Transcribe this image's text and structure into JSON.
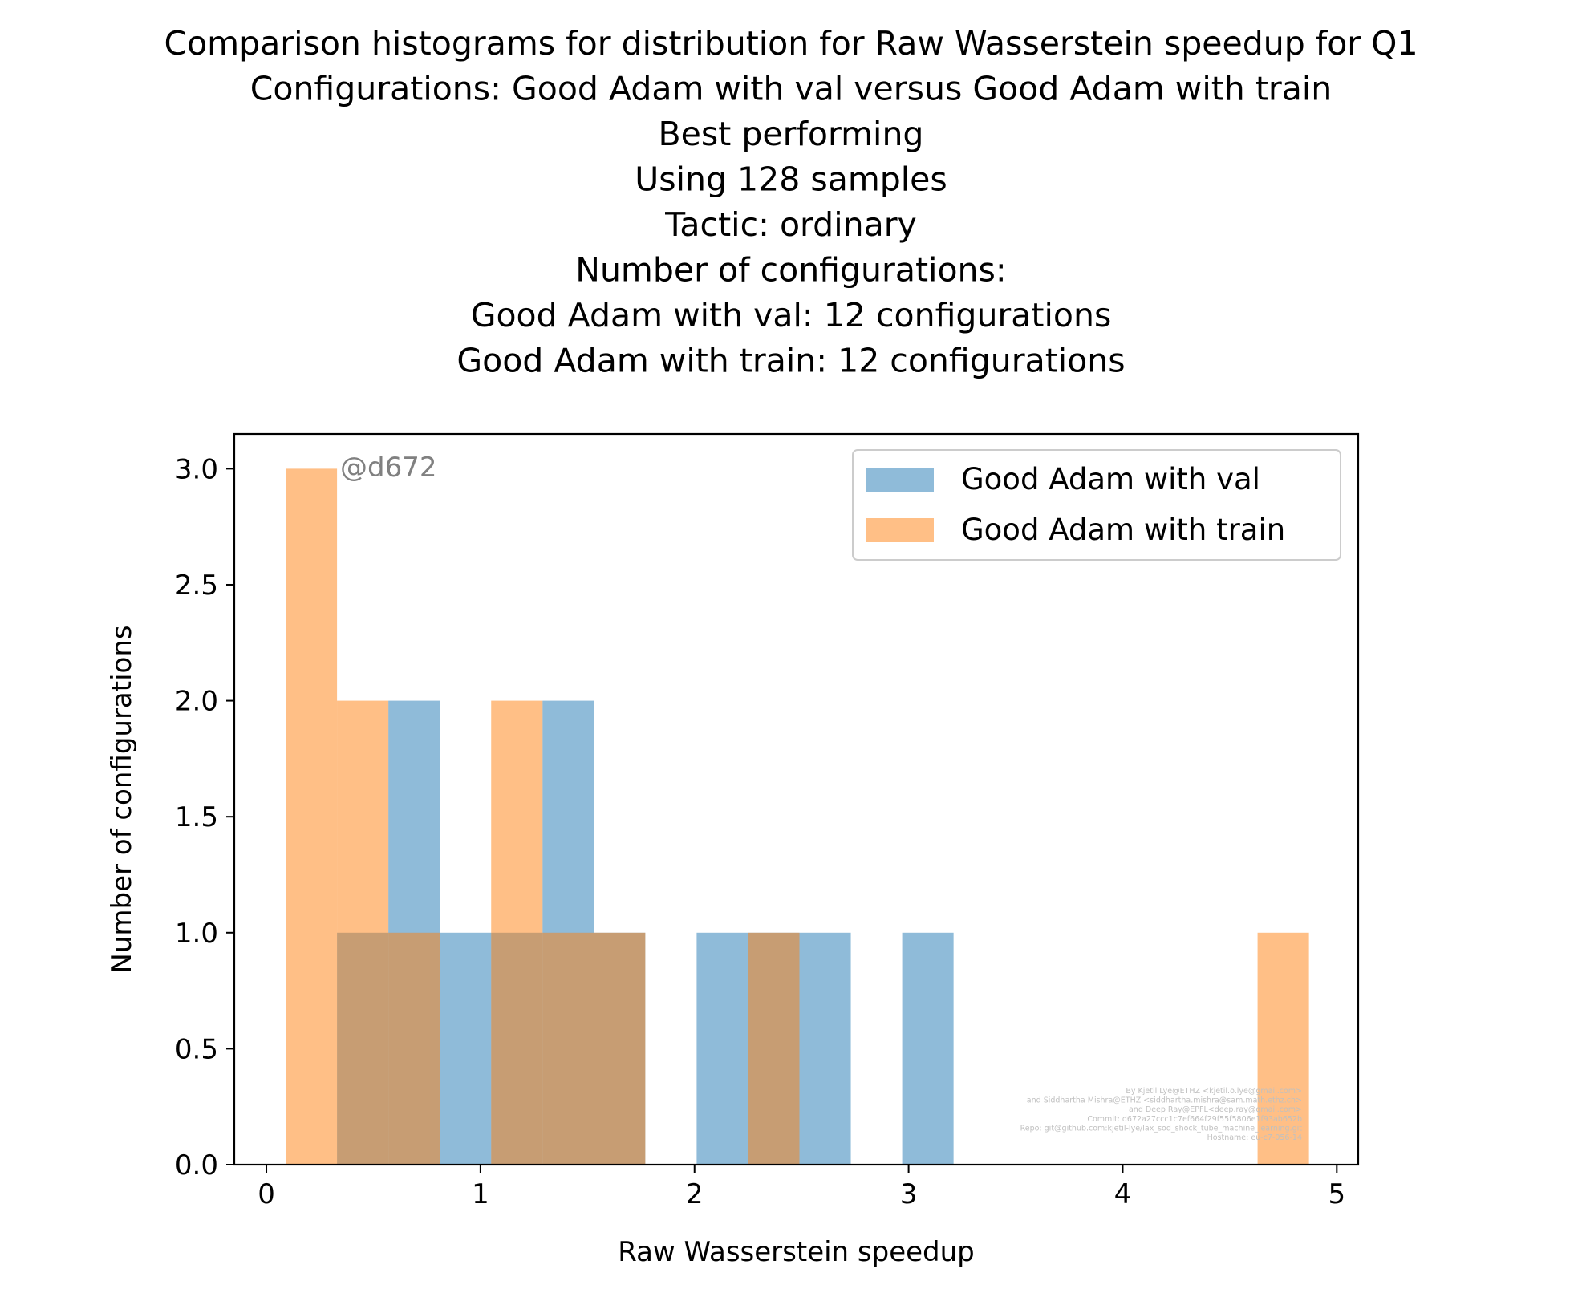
{
  "chart_data": {
    "type": "bar",
    "title_lines": [
      "Comparison histograms for distribution for Raw Wasserstein speedup for Q1",
      "Configurations: Good Adam with val versus Good Adam with train",
      "Best performing",
      "Using 128 samples",
      "Tactic: ordinary",
      "Number of configurations:",
      "Good Adam with val: 12 configurations",
      "Good Adam with train: 12 configurations"
    ],
    "xlabel": "Raw Wasserstein speedup",
    "ylabel": "Number of configurations",
    "xlim": [
      -0.15,
      5.1
    ],
    "ylim": [
      0,
      3.15
    ],
    "xticks": [
      0,
      1,
      2,
      3,
      4,
      5
    ],
    "xtick_labels": [
      "0",
      "1",
      "2",
      "3",
      "4",
      "5"
    ],
    "yticks": [
      0.0,
      0.5,
      1.0,
      1.5,
      2.0,
      2.5,
      3.0
    ],
    "ytick_labels": [
      "0.0",
      "0.5",
      "1.0",
      "1.5",
      "2.0",
      "2.5",
      "3.0"
    ],
    "grid": false,
    "legend_position": "top-right",
    "annotation": "@d672",
    "watermark_lines": [
      "By Kjetil Lye@ETHZ <kjetil.o.lye@gmail.com>",
      "and Siddhartha Mishra@ETHZ <siddhartha.mishra@sam.math.ethz.ch>",
      "and Deep Ray@EPFL<deep.ray@gmail.com>",
      "Commit: d672a27ccc1c7ef664f29f55f5806e1f93ab652b",
      "Repo: git@github.com:kjetil-lye/lax_sod_shock_tube_machine_learning.git",
      "Hostname: eu-c7-056-14"
    ],
    "series": [
      {
        "name": "Good Adam with val",
        "color": "#1f77b4",
        "opacity": 0.5,
        "bins": [
          {
            "x0": 0.33,
            "x1": 0.57,
            "count": 1
          },
          {
            "x0": 0.57,
            "x1": 0.81,
            "count": 2
          },
          {
            "x0": 0.81,
            "x1": 1.05,
            "count": 1
          },
          {
            "x0": 1.05,
            "x1": 1.29,
            "count": 1
          },
          {
            "x0": 1.29,
            "x1": 1.53,
            "count": 2
          },
          {
            "x0": 1.53,
            "x1": 1.77,
            "count": 1
          },
          {
            "x0": 1.77,
            "x1": 2.01,
            "count": 0
          },
          {
            "x0": 2.01,
            "x1": 2.25,
            "count": 1
          },
          {
            "x0": 2.25,
            "x1": 2.49,
            "count": 1
          },
          {
            "x0": 2.49,
            "x1": 2.73,
            "count": 1
          },
          {
            "x0": 2.73,
            "x1": 2.97,
            "count": 0
          },
          {
            "x0": 2.97,
            "x1": 3.21,
            "count": 1
          }
        ]
      },
      {
        "name": "Good Adam with train",
        "color": "#ff7f0e",
        "opacity": 0.5,
        "bins": [
          {
            "x0": 0.09,
            "x1": 0.33,
            "count": 3
          },
          {
            "x0": 0.33,
            "x1": 0.57,
            "count": 2
          },
          {
            "x0": 0.57,
            "x1": 0.81,
            "count": 1
          },
          {
            "x0": 0.81,
            "x1": 1.05,
            "count": 0
          },
          {
            "x0": 1.05,
            "x1": 1.29,
            "count": 2
          },
          {
            "x0": 1.29,
            "x1": 1.53,
            "count": 1
          },
          {
            "x0": 1.53,
            "x1": 1.77,
            "count": 1
          },
          {
            "x0": 2.25,
            "x1": 2.49,
            "count": 1
          },
          {
            "x0": 4.63,
            "x1": 4.87,
            "count": 1
          }
        ]
      }
    ]
  }
}
